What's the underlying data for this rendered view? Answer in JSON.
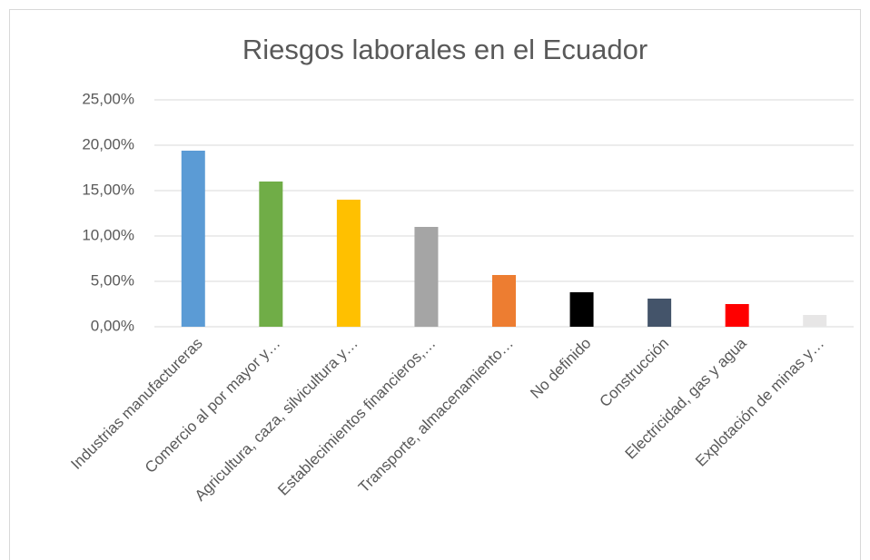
{
  "chart_data": {
    "type": "bar",
    "title": "Riesgos laborales en el Ecuador",
    "categories": [
      "Industrias manufactureras",
      "Comercio al por mayor y…",
      "Agricultura, caza, silvicultura y…",
      "Establecimientos financieros,…",
      "Transporte, almacenamiento…",
      "No definido",
      "Construcción",
      "Electricidad, gas y agua",
      "Explotación de minas y…"
    ],
    "values": [
      19.4,
      16.0,
      14.0,
      11.0,
      5.7,
      3.8,
      3.1,
      2.5,
      1.3
    ],
    "colors": [
      "#5b9bd5",
      "#70ad47",
      "#ffc000",
      "#a5a5a5",
      "#ed7d31",
      "#000000",
      "#44546a",
      "#ff0000",
      "#e7e6e6"
    ],
    "ylim": [
      0,
      25
    ],
    "yticks": [
      {
        "value": 0,
        "label": "0,00%"
      },
      {
        "value": 5,
        "label": "5,00%"
      },
      {
        "value": 10,
        "label": "10,00%"
      },
      {
        "value": 15,
        "label": "15,00%"
      },
      {
        "value": 20,
        "label": "20,00%"
      },
      {
        "value": 25,
        "label": "25,00%"
      }
    ],
    "grid": true
  }
}
